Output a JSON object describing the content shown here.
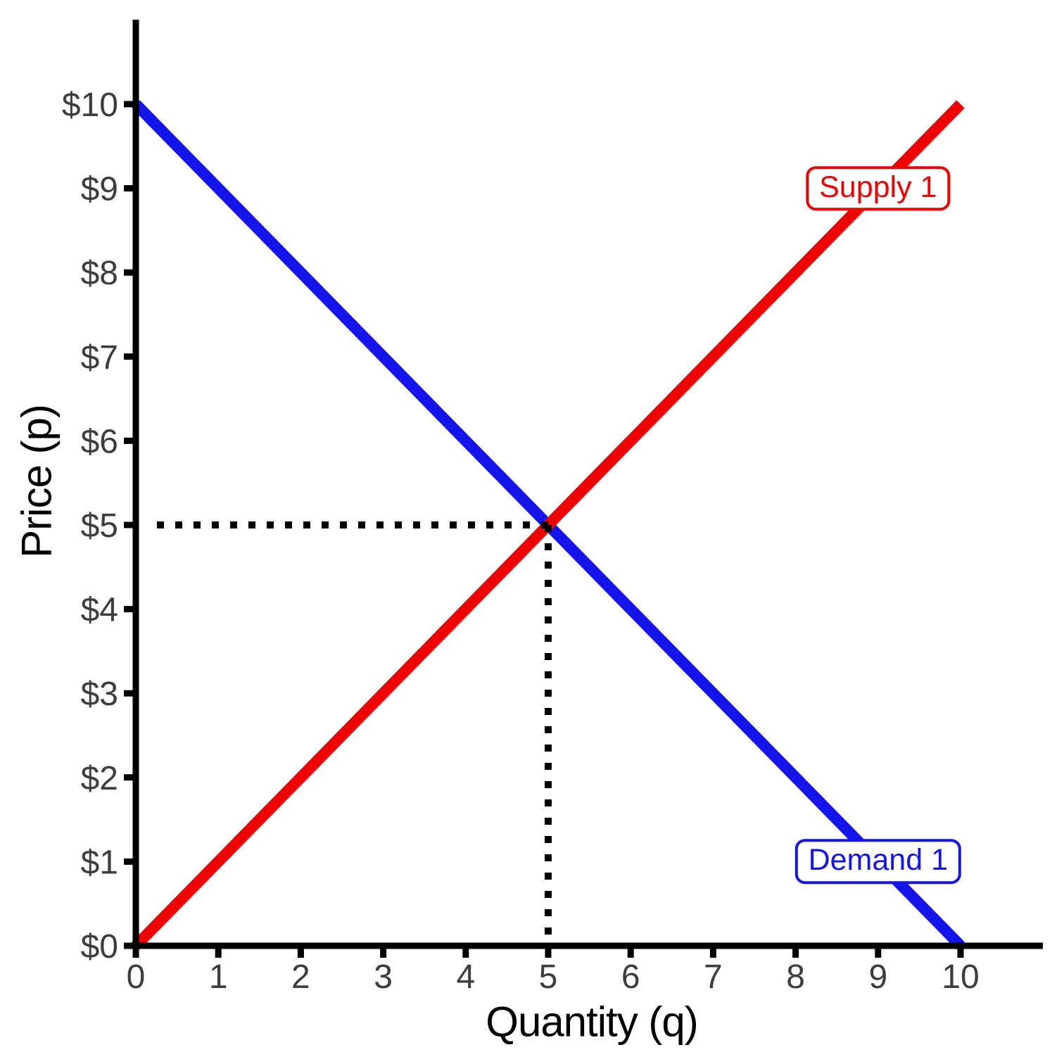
{
  "chart_data": {
    "type": "line",
    "title": "",
    "xlabel": "Quantity (q)",
    "ylabel": "Price (p)",
    "xlim": [
      0,
      10
    ],
    "ylim": [
      0,
      10
    ],
    "grid": false,
    "x_ticks": [
      "0",
      "1",
      "2",
      "3",
      "4",
      "5",
      "6",
      "7",
      "8",
      "9",
      "10"
    ],
    "y_ticks": [
      "$0",
      "$1",
      "$2",
      "$3",
      "$4",
      "$5",
      "$6",
      "$7",
      "$8",
      "$9",
      "$10"
    ],
    "series": [
      {
        "name": "Demand 1",
        "color": "#1414eb",
        "points": [
          [
            0,
            10
          ],
          [
            10,
            0
          ]
        ],
        "label": {
          "text": "Demand 1",
          "at": [
            9,
            1
          ]
        }
      },
      {
        "name": "Supply 1",
        "color": "#ee0202",
        "points": [
          [
            0,
            0
          ],
          [
            10,
            10
          ]
        ],
        "label": {
          "text": "Supply 1",
          "at": [
            9,
            9
          ]
        }
      }
    ],
    "equilibrium": {
      "quantity": 5,
      "price": 5,
      "quantity_label": "5",
      "price_label": "$5"
    },
    "guides": [
      {
        "type": "horizontal-dotted",
        "from": [
          5,
          5
        ],
        "to": [
          0,
          5
        ]
      },
      {
        "type": "vertical-dotted",
        "from": [
          5,
          5
        ],
        "to": [
          5,
          0
        ]
      }
    ],
    "colors": {
      "axis": "#000000",
      "tick_labels": "#3d3d3d",
      "axis_titles": "#000000",
      "guide_dots": "#000000",
      "background": "#ffffff"
    }
  }
}
